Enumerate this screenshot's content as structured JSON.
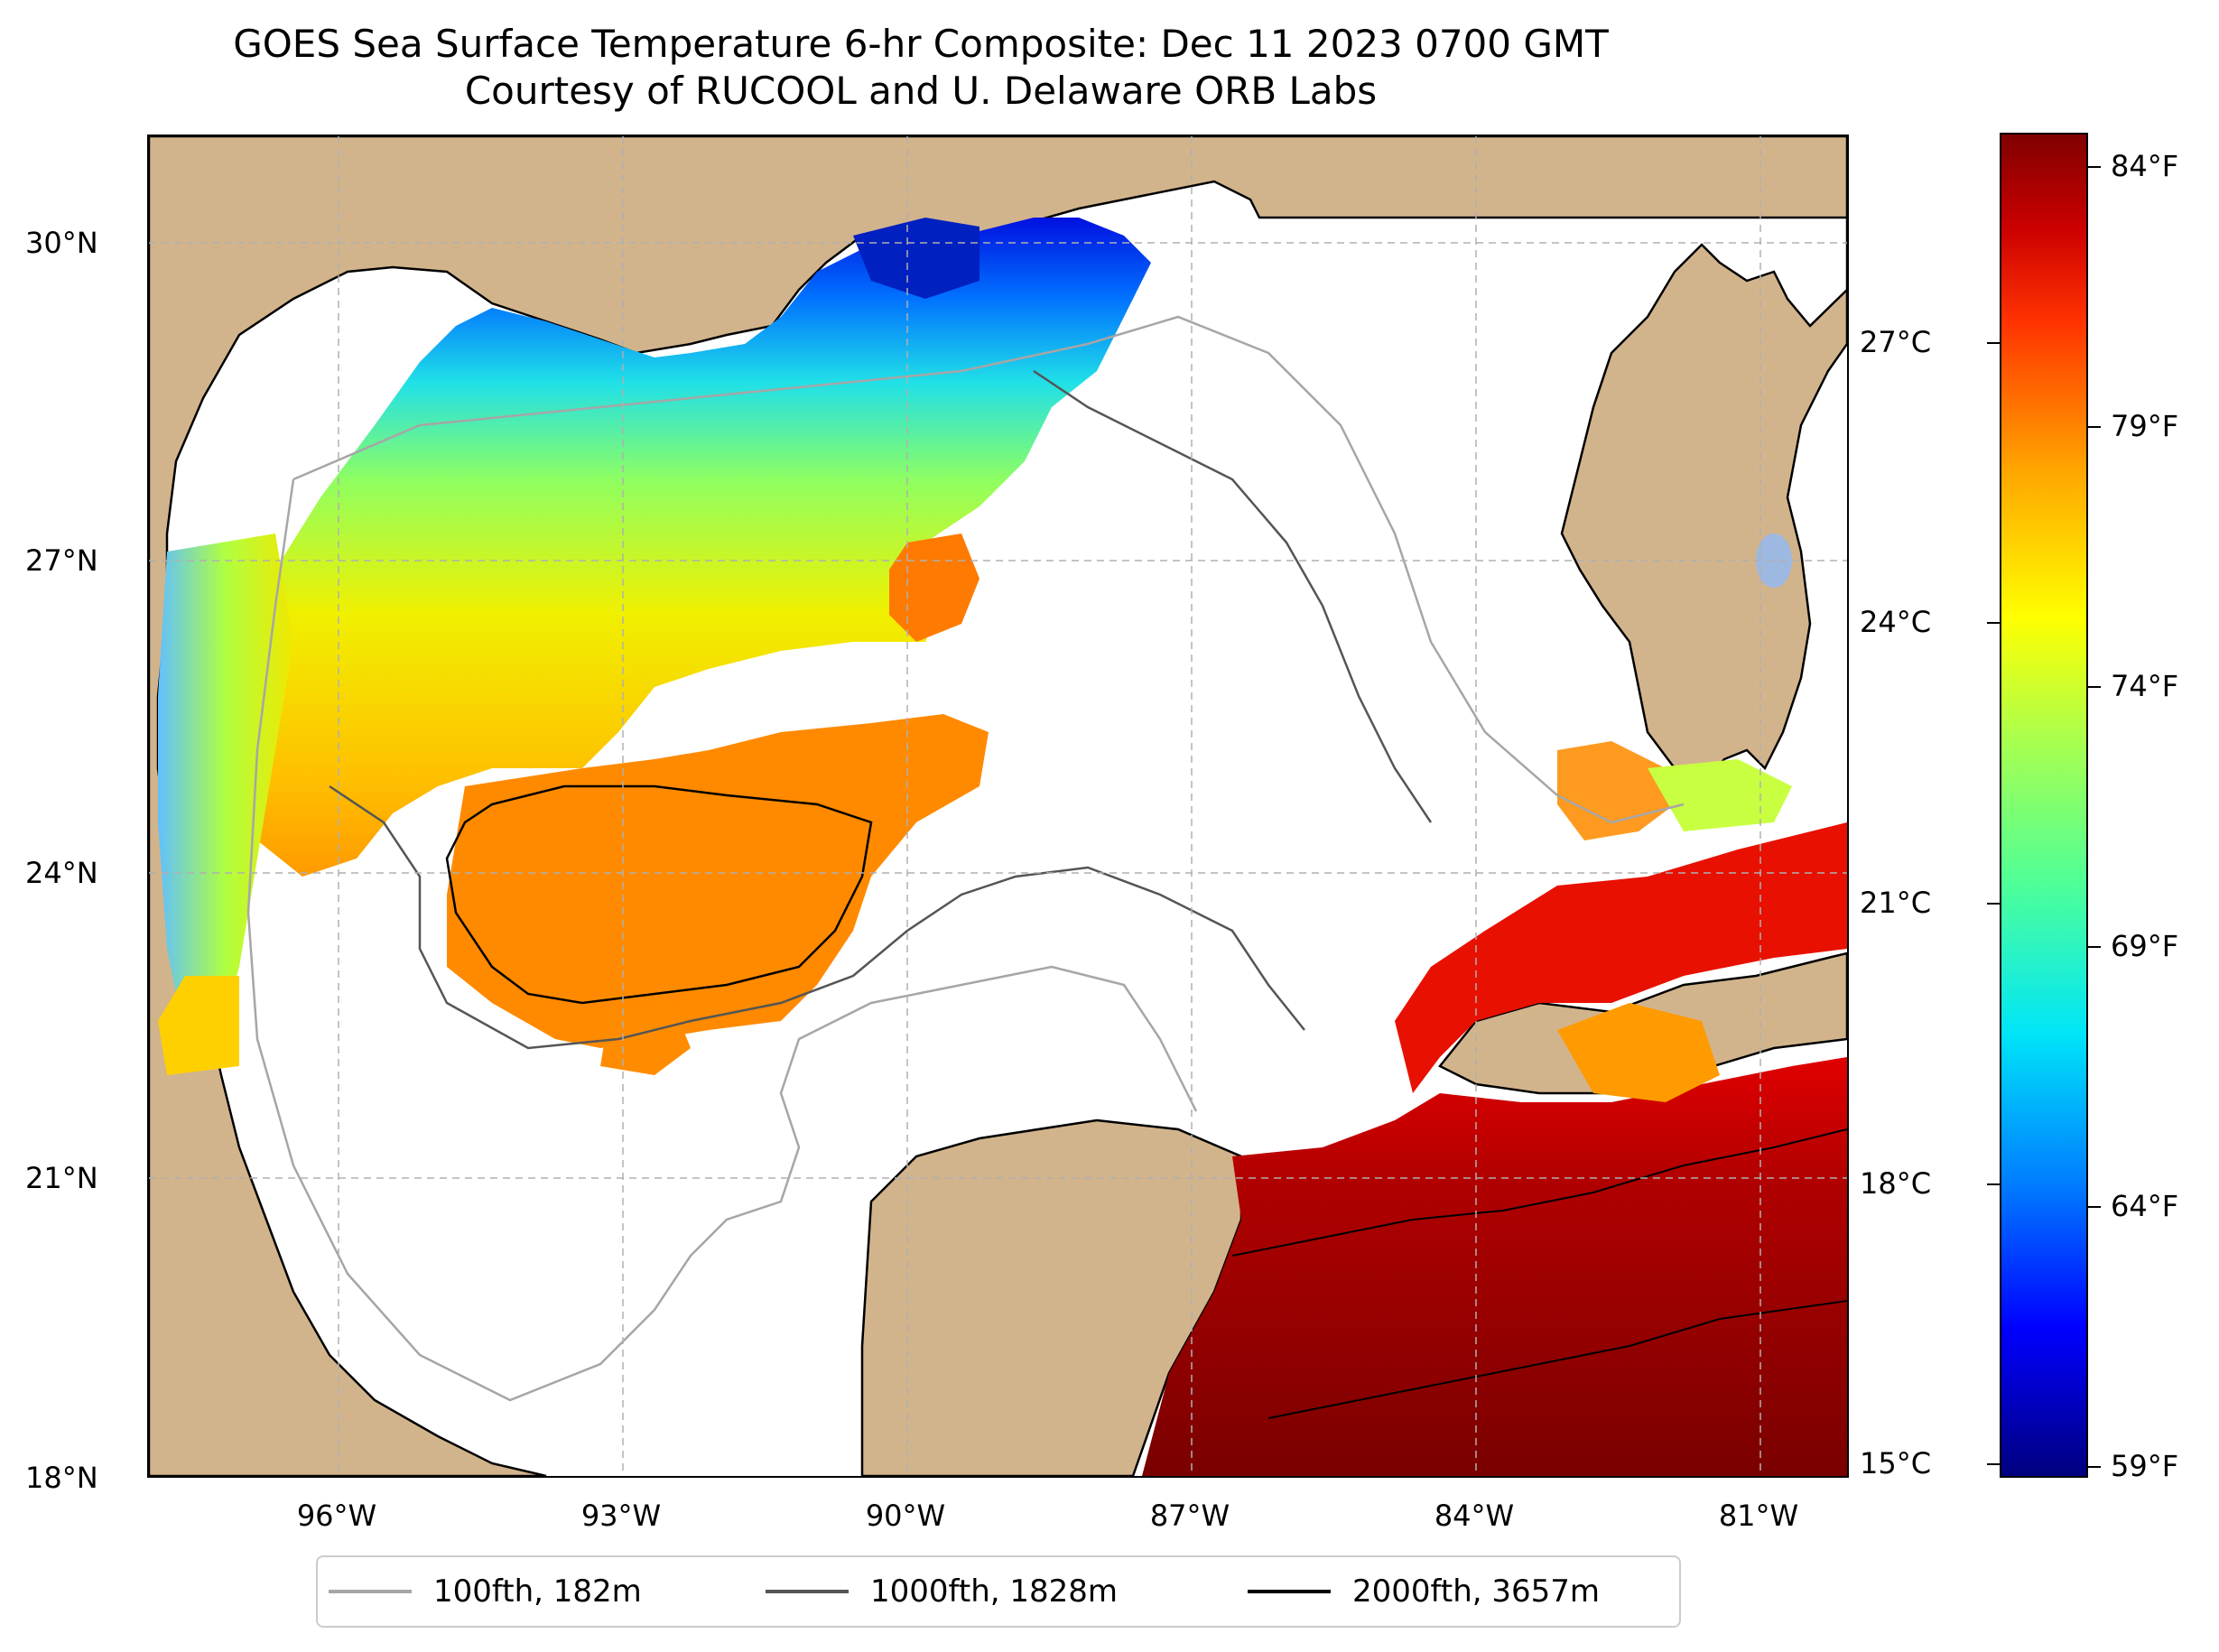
{
  "title": {
    "line1": "GOES Sea Surface Temperature 6-hr Composite: Dec 11 2023 0700 GMT",
    "line2": "Courtesy of RUCOOL and U. Delaware ORB Labs"
  },
  "map": {
    "latitude_labels": [
      "30°N",
      "27°N",
      "24°N",
      "21°N",
      "18°N"
    ],
    "longitude_labels": [
      "96°W",
      "93°W",
      "90°W",
      "87°W",
      "84°W",
      "81°W"
    ],
    "colors": {
      "land": "#d2b48c",
      "water_no_data": "#ffffff",
      "lakes": "#9db9e2",
      "gridline": "#b0b0b0"
    }
  },
  "colorbar": {
    "celsius_labels": [
      "27°C",
      "24°C",
      "21°C",
      "18°C",
      "15°C"
    ],
    "fahrenheit_labels": [
      "84°F",
      "79°F",
      "74°F",
      "69°F",
      "64°F",
      "59°F"
    ],
    "colormap": "jet"
  },
  "legend": {
    "items": [
      {
        "label": "100fth, 182m",
        "color": "#a6a6a6"
      },
      {
        "label": "1000fth, 1828m",
        "color": "#555555"
      },
      {
        "label": "2000fth, 3657m",
        "color": "#000000"
      }
    ]
  }
}
